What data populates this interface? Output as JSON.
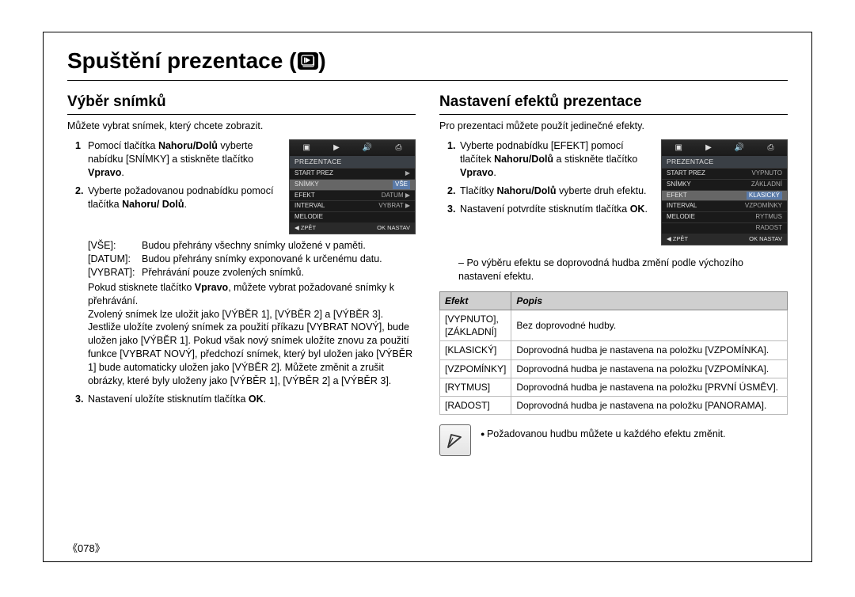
{
  "title": "Spuštění prezentace (",
  "title_end": ")",
  "left": {
    "heading": "Výběr snímků",
    "intro": "Můžete vybrat snímek, který chcete zobrazit.",
    "step1_pre": "Pomocí tlačítka ",
    "step1_b": "Nahoru/Dolů",
    "step1_mid": " vyberte nabídku [SNÍMKY] a stiskněte tlačítko ",
    "step1_b2": "Vpravo",
    "step1_end": ".",
    "step2_pre": "Vyberte požadovanou podnabídku pomocí tlačítka ",
    "step2_b": "Nahoru/ Dolů",
    "step2_end": ".",
    "sub": [
      {
        "k": "[VŠE]:",
        "v": "Budou přehrány všechny snímky uložené v paměti."
      },
      {
        "k": "[DATUM]:",
        "v": "Budou přehrány snímky exponované k určenému datu."
      },
      {
        "k": "[VYBRAT]:",
        "v": "Přehrávání pouze zvolených snímků."
      }
    ],
    "after": "Pokud stisknete tlačítko Vpravo, můžete vybrat požadované snímky k přehrávání.\nZvolený snímek lze uložit jako [VÝBĚR 1], [VÝBĚR 2] a [VÝBĚR 3]. Jestliže uložíte zvolený snímek za použití příkazu [VYBRAT NOVÝ], bude uložen jako [VÝBĚR 1]. Pokud však nový snímek uložíte znovu za použití funkce [VYBRAT NOVÝ], předchozí snímek, který byl uložen jako [VÝBĚR 1] bude automaticky uložen jako [VÝBĚR 2]. Můžete změnit a zrušit obrázky, které byly uloženy jako [VÝBĚR 1], [VÝBĚR 2] a [VÝBĚR 3].",
    "step3_pre": "Nastavení uložíte stisknutím tlačítka ",
    "step3_b": "OK",
    "step3_end": "."
  },
  "right": {
    "heading": "Nastavení efektů prezentace",
    "intro": "Pro prezentaci můžete použít jedinečné efekty.",
    "step1_pre": "Vyberte podnabídku [EFEKT] pomocí tlačítek ",
    "step1_b": "Nahoru/Dolů",
    "step1_mid": " a stiskněte tlačítko ",
    "step1_b2": "Vpravo",
    "step1_end": ".",
    "step2_pre": "Tlačítky ",
    "step2_b": "Nahoru/Dolů",
    "step2_end": " vyberte druh efektu.",
    "step3_pre": "Nastavení potvrdíte stisknutím tlačítka ",
    "step3_b": "OK",
    "step3_end": ".",
    "note": "Po výběru efektu se doprovodná hudba změní podle výchozího nastavení efektu.",
    "table": {
      "h1": "Efekt",
      "h2": "Popis",
      "rows": [
        {
          "e": "[VYPNUTO], [ZÁKLADNÍ]",
          "p": "Bez doprovodné hudby."
        },
        {
          "e": "[KLASICKÝ]",
          "p": "Doprovodná hudba je nastavena na položku [VZPOMÍNKA]."
        },
        {
          "e": "[VZPOMÍNKY]",
          "p": "Doprovodná hudba je nastavena na položku [VZPOMÍNKA]."
        },
        {
          "e": "[RYTMUS]",
          "p": "Doprovodná hudba je nastavena na položku [PRVNÍ ÚSMĚV]."
        },
        {
          "e": "[RADOST]",
          "p": "Doprovodná hudba je nastavena na položku [PANORAMA]."
        }
      ]
    },
    "tip": "Požadovanou hudbu můžete u každého efektu změnit."
  },
  "lcd1": {
    "header": "PREZENTACE",
    "rows": [
      {
        "l": "START PREZ",
        "r": "▶",
        "hl": false
      },
      {
        "l": "SNÍMKY",
        "r": "VŠE",
        "hl": true
      },
      {
        "l": "EFEKT",
        "r": "DATUM ▶",
        "hl": false
      },
      {
        "l": "INTERVAL",
        "r": "VYBRAT ▶",
        "hl": false
      },
      {
        "l": "MELODIE",
        "r": "",
        "hl": false
      }
    ],
    "fl": "◀ ZPĚT",
    "fr": "OK  NASTAV"
  },
  "lcd2": {
    "header": "PREZENTACE",
    "rows": [
      {
        "l": "START PREZ",
        "r": "VYPNUTO",
        "hl": false
      },
      {
        "l": "SNÍMKY",
        "r": "ZÁKLADNÍ",
        "hl": false
      },
      {
        "l": "EFEKT",
        "r": "KLASICKÝ",
        "hl": true
      },
      {
        "l": "INTERVAL",
        "r": "VZPOMÍNKY",
        "hl": false
      },
      {
        "l": "MELODIE",
        "r": "RYTMUS",
        "hl": false
      },
      {
        "l": "",
        "r": "RADOST",
        "hl": false
      }
    ],
    "fl": "◀ ZPĚT",
    "fr": "OK  NASTAV"
  },
  "pagenum": "078"
}
